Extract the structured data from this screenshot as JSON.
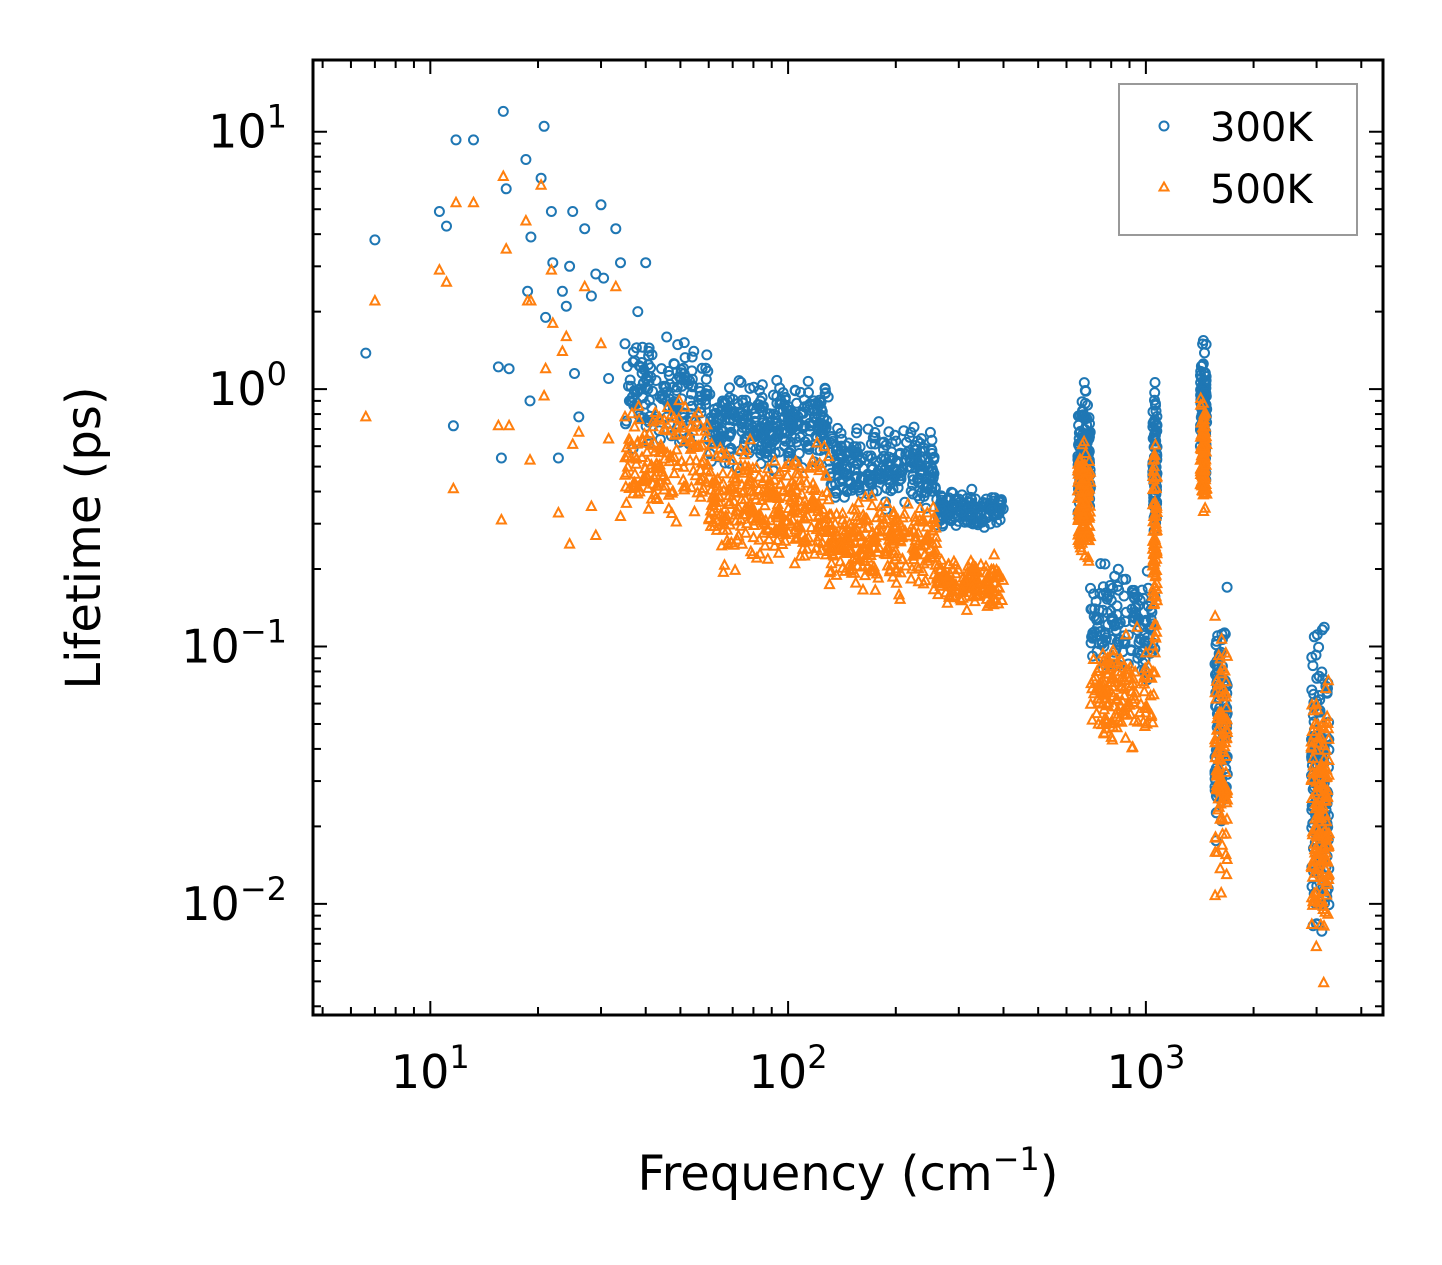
{
  "chart_data": {
    "type": "scatter",
    "title": "",
    "xlabel": {
      "text": "Frequency (cm",
      "sup": "−1",
      "suffix": ")"
    },
    "ylabel": "Lifetime (ps)",
    "xscale": "log",
    "yscale": "log",
    "xlim": [
      4.7,
      4600
    ],
    "ylim": [
      0.0037,
      19
    ],
    "x_ticks": [
      {
        "value": 10,
        "base": "10",
        "exp": "1"
      },
      {
        "value": 100,
        "base": "10",
        "exp": "2"
      },
      {
        "value": 1000,
        "base": "10",
        "exp": "3"
      }
    ],
    "y_ticks": [
      {
        "value": 10,
        "base": "10",
        "exp": "1"
      },
      {
        "value": 1,
        "base": "10",
        "exp": "0"
      },
      {
        "value": 0.1,
        "base": "10",
        "exp": "−1"
      },
      {
        "value": 0.01,
        "base": "10",
        "exp": "−2"
      }
    ],
    "legend": {
      "position": "top-right",
      "entries": [
        "300K",
        "500K"
      ]
    },
    "colors": {
      "300K": "#1f77b4",
      "500K": "#ff7f0e"
    },
    "series": [
      {
        "name": "300K",
        "marker": "circle",
        "points": [
          [
            6.6,
            1.38
          ],
          [
            7.0,
            3.8
          ],
          [
            10.6,
            4.9
          ],
          [
            11.1,
            4.3
          ],
          [
            11.6,
            0.72
          ],
          [
            11.8,
            9.3
          ],
          [
            13.2,
            9.3
          ],
          [
            15.5,
            1.22
          ],
          [
            15.8,
            0.54
          ],
          [
            16.0,
            12.0
          ],
          [
            16.3,
            6.0
          ],
          [
            16.6,
            1.2
          ],
          [
            18.5,
            7.8
          ],
          [
            18.7,
            2.4
          ],
          [
            19.0,
            0.9
          ],
          [
            19.1,
            3.9
          ],
          [
            20.4,
            6.6
          ],
          [
            20.8,
            10.5
          ],
          [
            21.0,
            1.9
          ],
          [
            21.8,
            4.9
          ],
          [
            22.0,
            3.1
          ],
          [
            22.8,
            0.54
          ],
          [
            23.4,
            2.4
          ],
          [
            24.0,
            2.1
          ],
          [
            24.5,
            3.0
          ],
          [
            25.0,
            4.9
          ],
          [
            25.3,
            1.15
          ],
          [
            26.0,
            0.78
          ],
          [
            27.0,
            4.2
          ],
          [
            28.2,
            2.3
          ],
          [
            29.0,
            2.8
          ],
          [
            30.0,
            5.2
          ],
          [
            30.5,
            2.7
          ],
          [
            31.5,
            1.1
          ],
          [
            33.0,
            4.2
          ],
          [
            34.0,
            3.1
          ],
          [
            35.0,
            1.5
          ],
          [
            36.0,
            0.9
          ],
          [
            38.0,
            2.0
          ],
          [
            40.0,
            3.1
          ]
        ],
        "clusters": [
          {
            "x": [
              35,
              60
            ],
            "y": [
              0.5,
              1.8
            ],
            "n": 160
          },
          {
            "x": [
              60,
              130
            ],
            "y": [
              0.45,
              1.2
            ],
            "n": 320
          },
          {
            "x": [
              130,
              260
            ],
            "y": [
              0.3,
              0.8
            ],
            "n": 260
          },
          {
            "x": [
              260,
              400
            ],
            "y": [
              0.27,
              0.42
            ],
            "n": 140
          },
          {
            "x": [
              645,
              700
            ],
            "y": [
              0.25,
              1.2
            ],
            "n": 130
          },
          {
            "x": [
              700,
              1060
            ],
            "y": [
              0.06,
              0.26
            ],
            "n": 150
          },
          {
            "x": [
              1045,
              1075
            ],
            "y": [
              0.2,
              1.35
            ],
            "n": 80
          },
          {
            "x": [
              1420,
              1480
            ],
            "y": [
              0.4,
              1.8
            ],
            "n": 110
          },
          {
            "x": [
              1560,
              1690
            ],
            "y": [
              0.012,
              0.22
            ],
            "n": 110
          },
          {
            "x": [
              2900,
              3250
            ],
            "y": [
              0.005,
              0.17
            ],
            "n": 170
          }
        ]
      },
      {
        "name": "500K",
        "marker": "triangle",
        "points": [
          [
            6.6,
            0.78
          ],
          [
            7.0,
            2.2
          ],
          [
            10.6,
            2.9
          ],
          [
            11.1,
            2.6
          ],
          [
            11.6,
            0.41
          ],
          [
            11.8,
            5.3
          ],
          [
            13.2,
            5.3
          ],
          [
            15.5,
            0.72
          ],
          [
            15.8,
            0.31
          ],
          [
            16.0,
            6.7
          ],
          [
            16.3,
            3.5
          ],
          [
            16.6,
            0.72
          ],
          [
            18.5,
            4.5
          ],
          [
            18.7,
            2.2
          ],
          [
            19.0,
            0.53
          ],
          [
            19.1,
            2.2
          ],
          [
            20.4,
            6.2
          ],
          [
            20.8,
            0.94
          ],
          [
            21.0,
            1.2
          ],
          [
            21.8,
            2.9
          ],
          [
            22.0,
            1.8
          ],
          [
            22.8,
            0.33
          ],
          [
            23.4,
            1.4
          ],
          [
            24.0,
            1.6
          ],
          [
            24.5,
            0.25
          ],
          [
            25.0,
            0.61
          ],
          [
            26.0,
            0.68
          ],
          [
            27.0,
            2.5
          ],
          [
            28.2,
            0.35
          ],
          [
            29.0,
            0.27
          ],
          [
            30.0,
            1.5
          ],
          [
            31.5,
            0.64
          ],
          [
            33.0,
            2.5
          ],
          [
            34.0,
            0.32
          ],
          [
            35.0,
            0.78
          ]
        ],
        "clusters": [
          {
            "x": [
              35,
              60
            ],
            "y": [
              0.28,
              1.1
            ],
            "n": 160
          },
          {
            "x": [
              60,
              130
            ],
            "y": [
              0.17,
              0.7
            ],
            "n": 320
          },
          {
            "x": [
              130,
              260
            ],
            "y": [
              0.14,
              0.45
            ],
            "n": 260
          },
          {
            "x": [
              260,
              400
            ],
            "y": [
              0.13,
              0.24
            ],
            "n": 140
          },
          {
            "x": [
              645,
              700
            ],
            "y": [
              0.17,
              0.7
            ],
            "n": 130
          },
          {
            "x": [
              700,
              1060
            ],
            "y": [
              0.033,
              0.13
            ],
            "n": 150
          },
          {
            "x": [
              1045,
              1075
            ],
            "y": [
              0.08,
              0.9
            ],
            "n": 80
          },
          {
            "x": [
              1420,
              1480
            ],
            "y": [
              0.3,
              1.0
            ],
            "n": 110
          },
          {
            "x": [
              1560,
              1690
            ],
            "y": [
              0.0085,
              0.16
            ],
            "n": 110
          },
          {
            "x": [
              2900,
              3250
            ],
            "y": [
              0.0045,
              0.1
            ],
            "n": 170
          }
        ]
      }
    ]
  }
}
